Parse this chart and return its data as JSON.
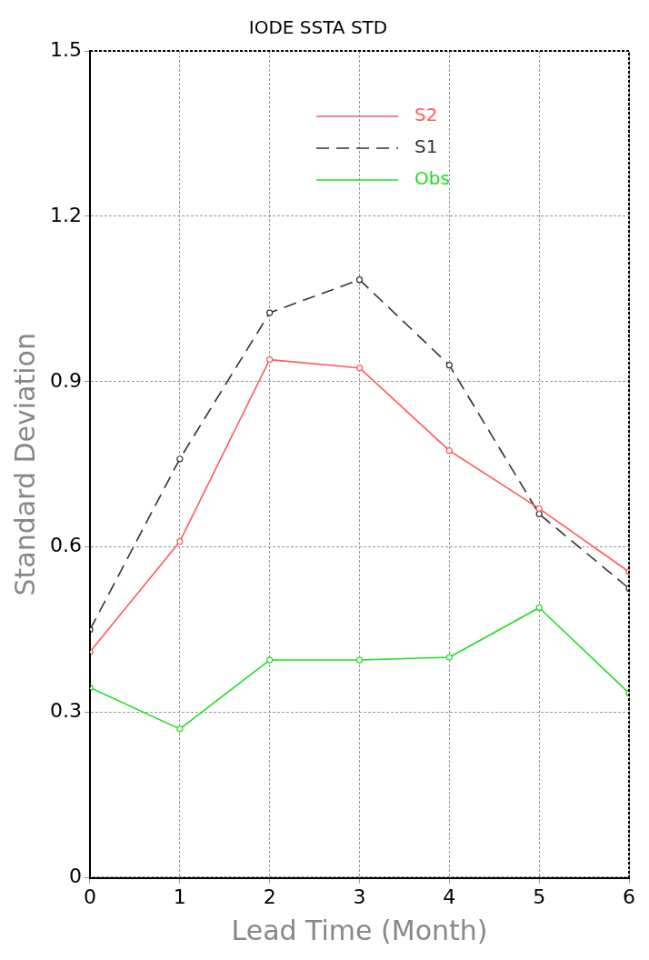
{
  "chart_data": {
    "type": "line",
    "title": "IODE SSTA STD",
    "xlabel": "Lead Time (Month)",
    "ylabel": "Standard Deviation",
    "x": [
      0,
      1,
      2,
      3,
      4,
      5,
      6
    ],
    "xlim": [
      0,
      6
    ],
    "xticks": [
      0,
      1,
      2,
      3,
      4,
      5,
      6
    ],
    "ylim": [
      0,
      1.5
    ],
    "yticks": [
      0,
      0.3,
      0.6,
      0.9,
      1.2,
      1.5
    ],
    "grid": true,
    "legend": "top right",
    "marker": "circle",
    "series": [
      {
        "name": "S2",
        "color": "#ff5a5a",
        "line_style": "solid",
        "values": [
          0.41,
          0.61,
          0.94,
          0.925,
          0.775,
          0.67,
          0.555
        ]
      },
      {
        "name": "S1",
        "color": "#333333",
        "line_style": "dashed",
        "values": [
          0.45,
          0.76,
          1.025,
          1.085,
          0.93,
          0.66,
          0.525
        ]
      },
      {
        "name": "Obs",
        "color": "#22dd22",
        "line_style": "solid",
        "values": [
          0.345,
          0.27,
          0.395,
          0.395,
          0.4,
          0.49,
          0.335
        ]
      }
    ]
  }
}
